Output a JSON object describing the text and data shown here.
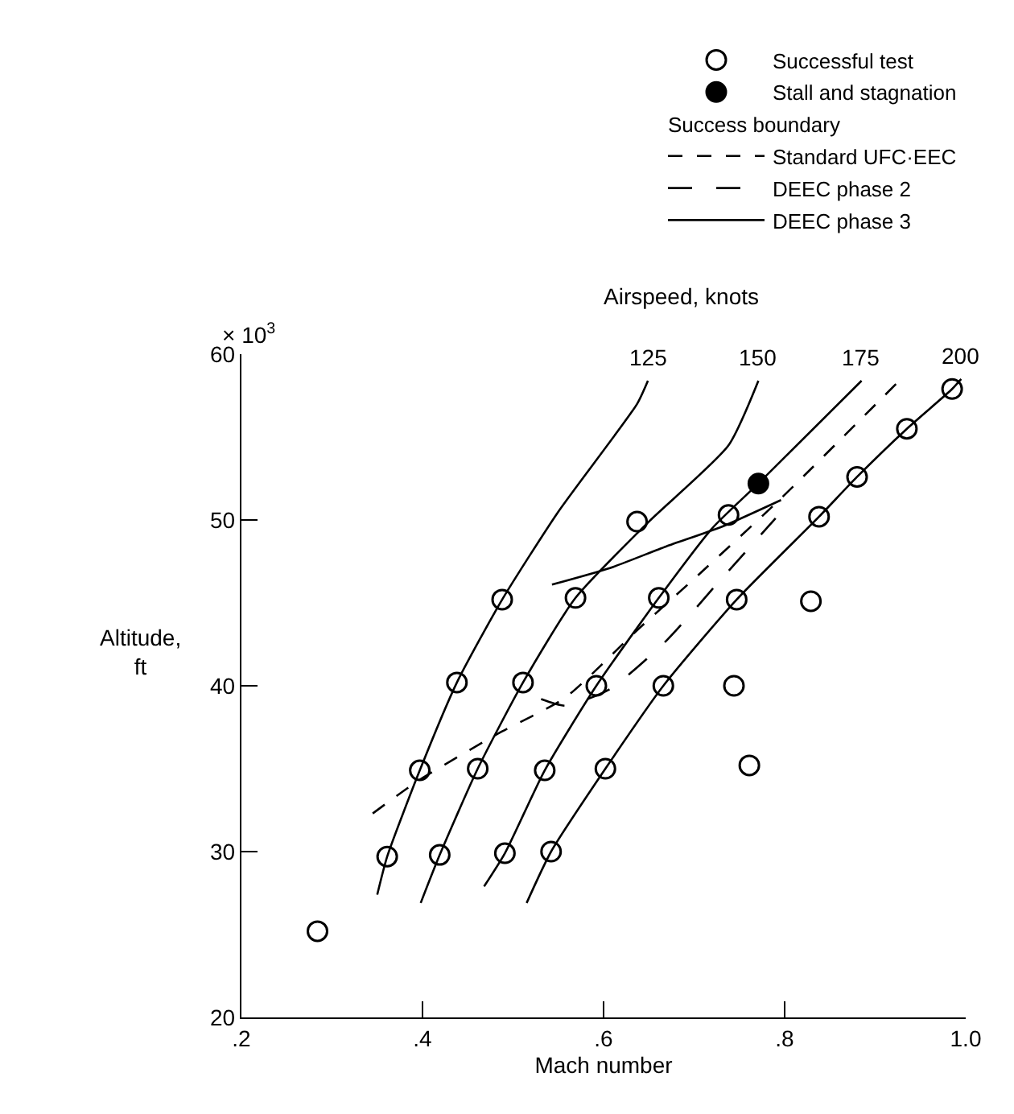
{
  "chart_data": {
    "type": "scatter",
    "xlabel": "Mach number",
    "ylabel": "Altitude,\nft",
    "legend_title": "Success boundary",
    "xlim": [
      0.2,
      1.0
    ],
    "xticks": [
      {
        "value": 0.2,
        "label": ".2"
      },
      {
        "value": 0.4,
        "label": ".4"
      },
      {
        "value": 0.6,
        "label": ".6"
      },
      {
        "value": 0.8,
        "label": ".8"
      },
      {
        "value": 1.0,
        "label": "1.0"
      }
    ],
    "ylim": [
      20,
      60
    ],
    "yticks": [
      20,
      30,
      40,
      50,
      60
    ],
    "legend": "top right",
    "annotations": [
      "Airspeed, knots",
      "× 10$^{3}$"
    ],
    "series": [
      {
        "name": "Successful test",
        "marker": "circle",
        "color": "#ffffff",
        "x": [
          0.361,
          0.397,
          0.438,
          0.488,
          0.637,
          0.419,
          0.461,
          0.511,
          0.569,
          0.738,
          0.491,
          0.535,
          0.592,
          0.661,
          0.542,
          0.602,
          0.666,
          0.747,
          0.838,
          0.88,
          0.935,
          0.985,
          0.829,
          0.744,
          0.761,
          0.284
        ],
        "values": [
          29.7,
          34.9,
          40.2,
          45.2,
          49.9,
          29.8,
          35.0,
          40.2,
          45.3,
          50.3,
          29.9,
          34.9,
          40.0,
          45.3,
          30.0,
          35.0,
          40.0,
          45.2,
          50.2,
          52.6,
          55.5,
          57.9,
          45.1,
          40.0,
          35.2,
          25.2
        ]
      },
      {
        "name": "Stall and stagnation",
        "marker": "circle",
        "color": "#000000",
        "x": [
          0.771
        ],
        "values": [
          52.2
        ]
      },
      {
        "name": "Standard UFC·EEC",
        "type": "line",
        "color": "#000000",
        "line_style": "dashed",
        "x": [
          0.345,
          0.396,
          0.483,
          0.558,
          0.638,
          0.701,
          0.794,
          0.923
        ],
        "values": [
          32.3,
          34.3,
          37.1,
          39.3,
          43.4,
          46.5,
          51.2,
          58.2
        ]
      },
      {
        "name": "DEEC phase 2",
        "type": "line",
        "color": "#000000",
        "line_style": "longdash",
        "x": [
          0.531,
          0.558,
          0.607,
          0.669,
          0.731,
          0.79
        ],
        "values": [
          39.2,
          38.8,
          39.8,
          42.7,
          46.5,
          50.1
        ]
      },
      {
        "name": "DEEC phase 3",
        "type": "line",
        "color": "#000000",
        "line_style": "solid",
        "x": [
          0.543,
          0.607,
          0.669,
          0.731,
          0.796
        ],
        "values": [
          46.1,
          47.1,
          48.4,
          49.6,
          51.2
        ]
      },
      {
        "name": "125",
        "type": "line",
        "color": "#000000",
        "x": [
          0.35,
          0.361,
          0.397,
          0.438,
          0.488,
          0.55,
          0.637,
          0.649
        ],
        "values": [
          27.4,
          29.7,
          34.9,
          40.2,
          45.2,
          50.5,
          57.0,
          58.4
        ]
      },
      {
        "name": "150",
        "type": "line",
        "color": "#000000",
        "x": [
          0.398,
          0.419,
          0.461,
          0.511,
          0.569,
          0.65,
          0.738,
          0.771
        ],
        "values": [
          26.9,
          29.8,
          35.0,
          40.2,
          45.3,
          49.9,
          54.5,
          58.4
        ]
      },
      {
        "name": "175",
        "type": "line",
        "color": "#000000",
        "x": [
          0.468,
          0.491,
          0.535,
          0.592,
          0.661,
          0.72,
          0.771,
          0.885
        ],
        "values": [
          27.9,
          29.9,
          34.9,
          40.0,
          45.3,
          49.5,
          52.2,
          58.4
        ]
      },
      {
        "name": "200",
        "type": "line",
        "color": "#000000",
        "x": [
          0.515,
          0.542,
          0.602,
          0.666,
          0.747,
          0.838,
          0.88,
          0.935,
          0.985,
          0.995
        ],
        "values": [
          26.9,
          30.0,
          35.0,
          40.0,
          45.2,
          50.2,
          52.6,
          55.5,
          57.9,
          58.5
        ]
      }
    ]
  }
}
